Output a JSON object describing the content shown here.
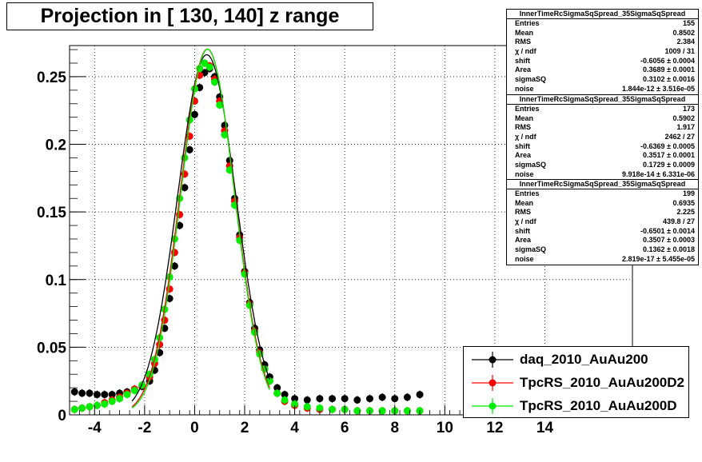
{
  "title": "Projection in [ 130, 140] z range",
  "stats_boxes": [
    {
      "header": "InnerTimeRcSigmaSqSpread_35SigmaSqSpread",
      "rows": [
        {
          "label": "Entries",
          "value": "155"
        },
        {
          "label": "Mean",
          "value": "0.8502"
        },
        {
          "label": "RMS",
          "value": "2.384"
        },
        {
          "label": "χ  / ndf",
          "value": "1009 / 31"
        },
        {
          "label": "shift",
          "value": "-0.6056 ± 0.0004"
        },
        {
          "label": "Area",
          "value": "0.3689 ± 0.0001"
        },
        {
          "label": "sigmaSQ",
          "value": "0.3102 ± 0.0016"
        },
        {
          "label": "noise",
          "value": "1.844e-12 ± 3.516e-05"
        }
      ]
    },
    {
      "header": "InnerTimeRcSigmaSqSpread_35SigmaSqSpread",
      "rows": [
        {
          "label": "Entries",
          "value": "173"
        },
        {
          "label": "Mean",
          "value": "0.5902"
        },
        {
          "label": "RMS",
          "value": "1.917"
        },
        {
          "label": "χ  / ndf",
          "value": "2462 / 27"
        },
        {
          "label": "shift",
          "value": "-0.6369 ± 0.0005"
        },
        {
          "label": "Area",
          "value": "0.3517 ± 0.0001"
        },
        {
          "label": "sigmaSQ",
          "value": "0.1729 ± 0.0009"
        },
        {
          "label": "noise",
          "value": "9.918e-14 ± 6.331e-06"
        }
      ]
    },
    {
      "header": "InnerTimeRcSigmaSqSpread_35SigmaSqSpread",
      "rows": [
        {
          "label": "Entries",
          "value": "199"
        },
        {
          "label": "Mean",
          "value": "0.6935"
        },
        {
          "label": "RMS",
          "value": "2.225"
        },
        {
          "label": "χ  / ndf",
          "value": "439.8 / 27"
        },
        {
          "label": "shift",
          "value": "-0.6501 ± 0.0014"
        },
        {
          "label": "Area",
          "value": "0.3507 ± 0.0003"
        },
        {
          "label": "sigmaSQ",
          "value": "0.1362 ± 0.0018"
        },
        {
          "label": "noise",
          "value": "2.819e-17 ± 5.455e-05"
        }
      ]
    }
  ],
  "chart_data": {
    "type": "scatter",
    "title": "Projection in [ 130, 140] z range",
    "xlim": [
      -5,
      17.5
    ],
    "ylim": [
      0,
      0.273
    ],
    "grid": true,
    "legend_position": "bottom-right",
    "x_ticks": [
      -4,
      -2,
      0,
      2,
      4,
      6,
      8,
      10,
      12,
      14
    ],
    "y_ticks": [
      0,
      0.05,
      0.1,
      0.15,
      0.2,
      0.25
    ],
    "x_tick_labels": [
      "-4",
      "-2",
      "0",
      "2",
      "4",
      "6",
      "8",
      "10",
      "12",
      "14"
    ],
    "y_tick_labels": [
      "0",
      "0.05",
      "0.1",
      "0.15",
      "0.2",
      "0.25"
    ],
    "series": [
      {
        "name": "daq_2010_AuAu200",
        "color": "#000000",
        "x": [
          -4.8,
          -4.5,
          -4.2,
          -3.9,
          -3.6,
          -3.3,
          -3.0,
          -2.7,
          -2.4,
          -2.1,
          -1.8,
          -1.6,
          -1.4,
          -1.2,
          -1.0,
          -0.8,
          -0.6,
          -0.4,
          -0.2,
          0.0,
          0.2,
          0.4,
          0.6,
          0.8,
          1.0,
          1.2,
          1.4,
          1.6,
          1.8,
          2.0,
          2.2,
          2.4,
          2.6,
          2.8,
          3.0,
          3.3,
          3.6,
          4.0,
          4.5,
          5.0,
          5.5,
          6.0,
          6.5,
          7.0,
          7.5,
          8.0,
          8.5,
          9.0
        ],
        "y": [
          0.017,
          0.016,
          0.016,
          0.015,
          0.015,
          0.015,
          0.016,
          0.017,
          0.019,
          0.021,
          0.025,
          0.033,
          0.046,
          0.064,
          0.086,
          0.11,
          0.14,
          0.168,
          0.196,
          0.222,
          0.242,
          0.253,
          0.256,
          0.25,
          0.235,
          0.214,
          0.188,
          0.16,
          0.133,
          0.106,
          0.083,
          0.064,
          0.048,
          0.037,
          0.028,
          0.02,
          0.015,
          0.012,
          0.011,
          0.012,
          0.012,
          0.012,
          0.011,
          0.012,
          0.013,
          0.012,
          0.013,
          0.015
        ]
      },
      {
        "name": "TpcRS_2010_AuAu200D2",
        "color": "#ff0000",
        "x": [
          -4.8,
          -4.5,
          -4.2,
          -3.9,
          -3.6,
          -3.3,
          -3.0,
          -2.7,
          -2.4,
          -2.1,
          -1.8,
          -1.6,
          -1.4,
          -1.2,
          -1.0,
          -0.8,
          -0.6,
          -0.4,
          -0.2,
          0.0,
          0.2,
          0.4,
          0.6,
          0.8,
          1.0,
          1.2,
          1.4,
          1.6,
          1.8,
          2.0,
          2.2,
          2.4,
          2.6,
          2.8,
          3.0,
          3.3,
          3.6,
          4.0,
          4.5,
          5.0,
          5.5,
          6.0,
          6.5,
          7.0,
          7.5,
          8.0,
          8.5,
          9.0
        ],
        "y": [
          0.004,
          0.005,
          0.006,
          0.007,
          0.009,
          0.011,
          0.013,
          0.016,
          0.019,
          0.022,
          0.028,
          0.038,
          0.052,
          0.07,
          0.093,
          0.12,
          0.148,
          0.178,
          0.206,
          0.232,
          0.251,
          0.26,
          0.258,
          0.248,
          0.232,
          0.21,
          0.184,
          0.158,
          0.131,
          0.105,
          0.082,
          0.062,
          0.046,
          0.034,
          0.025,
          0.016,
          0.01,
          0.007,
          0.005,
          0.004,
          0.004,
          0.004,
          0.003,
          0.003,
          0.003,
          0.003,
          0.003,
          0.003
        ]
      },
      {
        "name": "TpcRS_2010_AuAu200D",
        "color": "#00ee00",
        "x": [
          -4.8,
          -4.5,
          -4.2,
          -3.9,
          -3.6,
          -3.3,
          -3.0,
          -2.7,
          -2.4,
          -2.1,
          -1.8,
          -1.6,
          -1.4,
          -1.2,
          -1.0,
          -0.8,
          -0.6,
          -0.4,
          -0.2,
          0.0,
          0.2,
          0.4,
          0.6,
          0.8,
          1.0,
          1.2,
          1.4,
          1.6,
          1.8,
          2.0,
          2.2,
          2.4,
          2.6,
          2.8,
          3.0,
          3.3,
          3.6,
          4.0,
          4.5,
          5.0,
          5.5,
          6.0,
          6.5,
          7.0,
          7.5,
          8.0,
          8.5,
          9.0
        ],
        "y": [
          0.004,
          0.005,
          0.006,
          0.007,
          0.008,
          0.01,
          0.012,
          0.015,
          0.018,
          0.022,
          0.03,
          0.041,
          0.057,
          0.078,
          0.102,
          0.13,
          0.16,
          0.19,
          0.218,
          0.241,
          0.256,
          0.26,
          0.257,
          0.246,
          0.229,
          0.207,
          0.181,
          0.155,
          0.129,
          0.104,
          0.081,
          0.061,
          0.045,
          0.034,
          0.025,
          0.016,
          0.011,
          0.008,
          0.006,
          0.005,
          0.004,
          0.004,
          0.003,
          0.003,
          0.003,
          0.003,
          0.003,
          0.003
        ]
      }
    ],
    "fits": [
      {
        "color": "#000000",
        "shift": -0.6056,
        "area": 0.3689,
        "sigmaSQ": 0.3102
      },
      {
        "color": "#ff0000",
        "shift": -0.6369,
        "area": 0.3517,
        "sigmaSQ": 0.1729
      },
      {
        "color": "#00ee00",
        "shift": -0.6501,
        "area": 0.3507,
        "sigmaSQ": 0.1362
      }
    ]
  }
}
